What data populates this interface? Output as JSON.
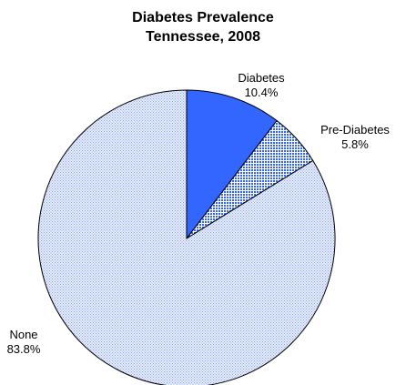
{
  "chart_data": {
    "type": "pie",
    "title": [
      "Diabetes Prevalence",
      "Tennessee, 2008"
    ],
    "start_angle_deg": 0,
    "direction": "clockwise",
    "slices": [
      {
        "name": "Diabetes",
        "value": 10.4,
        "value_label": "10.4%",
        "color": "#3366ff",
        "pattern": "solid"
      },
      {
        "name": "Pre-Diabetes",
        "value": 5.8,
        "value_label": "5.8%",
        "color": "#3366ff",
        "pattern": "dense-dots"
      },
      {
        "name": "None",
        "value": 83.8,
        "value_label": "83.8%",
        "color": "#8aa4e8",
        "pattern": "fine-dots"
      }
    ]
  }
}
